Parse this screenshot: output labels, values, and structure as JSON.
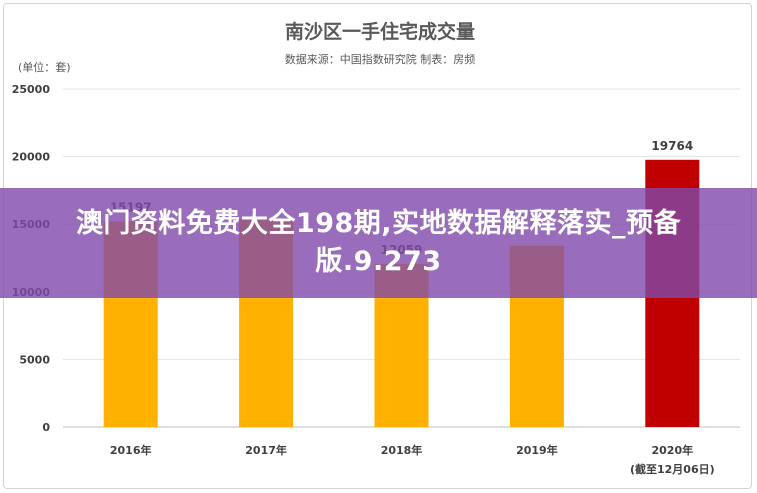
{
  "chart_data": {
    "type": "bar",
    "title": "南沙区一手住宅成交量",
    "subtitle": "数据来源：中国指数研究院 制表：房频",
    "unit_label": "(单位：套)",
    "categories": [
      "2016年",
      "2017年",
      "2018年",
      "2019年",
      "2020年"
    ],
    "category_notes": [
      "",
      "",
      "",
      "",
      "(截至12月06日)"
    ],
    "values": [
      15197,
      15400,
      12059,
      13400,
      19764
    ],
    "data_labels": [
      "15197",
      "",
      "12059",
      "",
      "19764"
    ],
    "bar_colors": [
      "#FFB000",
      "#FFB000",
      "#FFB000",
      "#FFB000",
      "#C00000"
    ],
    "ylim": [
      0,
      25000
    ],
    "yticks": [
      0,
      5000,
      10000,
      15000,
      20000,
      25000
    ],
    "grid": true
  },
  "overlay": {
    "text": "澳门资料免费大全198期,实地数据解释落实_预备版.9.273"
  }
}
